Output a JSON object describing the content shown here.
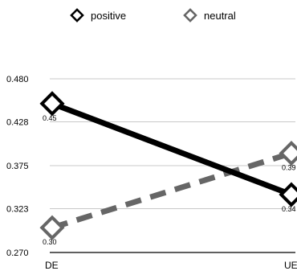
{
  "chart_data": {
    "type": "line",
    "categories": [
      "DE",
      "UE"
    ],
    "series": [
      {
        "name": "positive",
        "values": [
          0.45,
          0.34
        ],
        "data_labels": [
          "0.45",
          "0.34"
        ],
        "color": "#000000",
        "line_style": "solid"
      },
      {
        "name": "neutral",
        "values": [
          0.3,
          0.39
        ],
        "data_labels": [
          "0.30",
          "0.39"
        ],
        "color": "#666666",
        "line_style": "dashed"
      }
    ],
    "y_ticks": [
      "0.480",
      "0.428",
      "0.375",
      "0.323",
      "0.270"
    ],
    "y_tick_values": [
      0.48,
      0.428,
      0.375,
      0.323,
      0.27
    ],
    "ylim": [
      0.27,
      0.48
    ],
    "grid": true,
    "legend_position": "top",
    "title": "",
    "xlabel": "",
    "ylabel": ""
  }
}
